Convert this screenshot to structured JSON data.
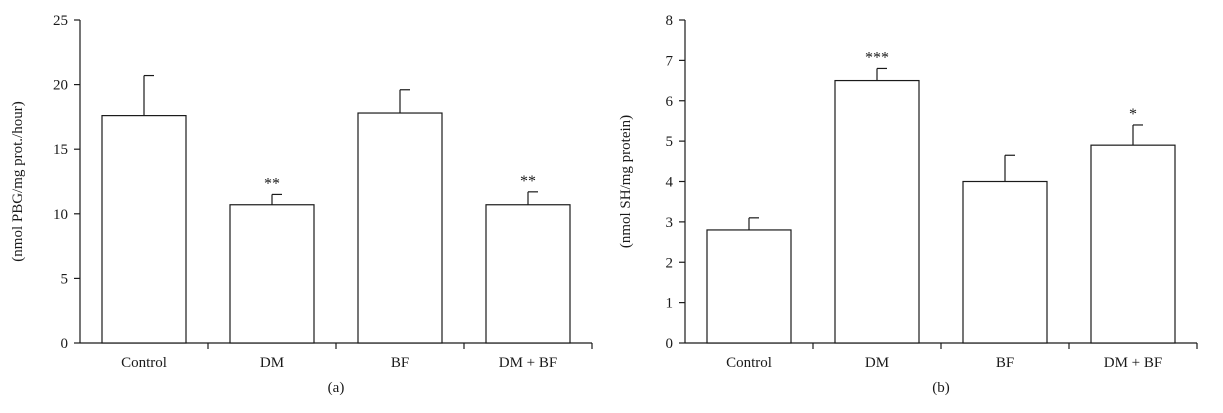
{
  "chart_data": [
    {
      "type": "bar",
      "panel_label": "(a)",
      "ylabel": "(nmol PBG/mg prot./hour)",
      "xlabel": "",
      "categories": [
        "Control",
        "DM",
        "BF",
        "DM + BF"
      ],
      "values": [
        17.6,
        10.7,
        17.8,
        10.7
      ],
      "errors": [
        3.1,
        0.8,
        1.8,
        1.0
      ],
      "significance": [
        "",
        "**",
        "",
        "**"
      ],
      "ylim": [
        0,
        25
      ],
      "yticks": [
        0,
        5,
        10,
        15,
        20,
        25
      ],
      "grid": false
    },
    {
      "type": "bar",
      "panel_label": "(b)",
      "ylabel": "(nmol SH/mg protein)",
      "xlabel": "",
      "categories": [
        "Control",
        "DM",
        "BF",
        "DM + BF"
      ],
      "values": [
        2.8,
        6.5,
        4.0,
        4.9
      ],
      "errors": [
        0.3,
        0.3,
        0.65,
        0.5
      ],
      "significance": [
        "",
        "***",
        "",
        "*"
      ],
      "ylim": [
        0,
        8
      ],
      "yticks": [
        0,
        1,
        2,
        3,
        4,
        5,
        6,
        7,
        8
      ],
      "grid": false
    }
  ]
}
